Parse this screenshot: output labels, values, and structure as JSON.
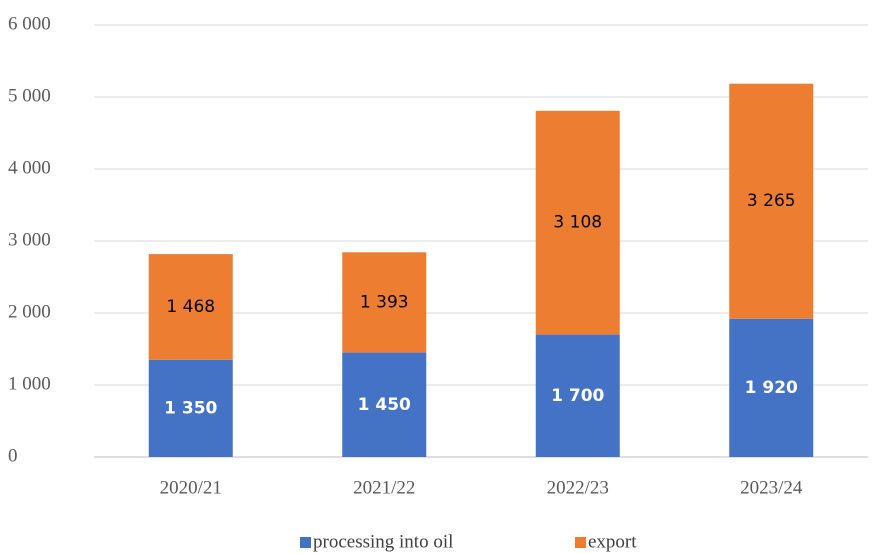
{
  "chart_data": {
    "type": "stacked_bar",
    "categories": [
      "2020/21",
      "2021/22",
      "2022/23",
      "2023/24"
    ],
    "series": [
      {
        "name": "processing into oil",
        "color": "#4472c4",
        "values": [
          1350,
          1450,
          1700,
          1920
        ],
        "value_labels": [
          "1 350",
          "1 450",
          "1 700",
          "1 920"
        ]
      },
      {
        "name": "export",
        "color": "#ed7d31",
        "values": [
          1468,
          1393,
          3108,
          3265
        ],
        "value_labels": [
          "1 468",
          "1 393",
          "3 108",
          "3 265"
        ]
      }
    ],
    "ylim": [
      0,
      6000
    ],
    "yticks": [
      {
        "value": 0,
        "label": "0"
      },
      {
        "value": 1000,
        "label": "1 000"
      },
      {
        "value": 2000,
        "label": "2 000"
      },
      {
        "value": 3000,
        "label": "3 000"
      },
      {
        "value": 4000,
        "label": "4 000"
      },
      {
        "value": 5000,
        "label": "5 000"
      },
      {
        "value": 6000,
        "label": "6 000"
      }
    ],
    "grid": true,
    "legend": "bottom"
  }
}
